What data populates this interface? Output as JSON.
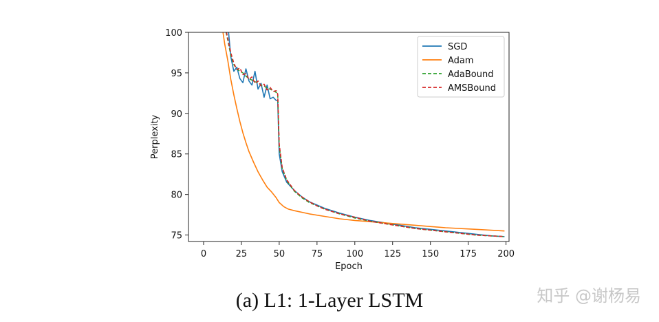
{
  "caption": "(a) L1: 1-Layer LSTM",
  "watermark": "知乎 @谢杨易",
  "chart_data": {
    "type": "line",
    "title": "",
    "xlabel": "Epoch",
    "ylabel": "Perplexity",
    "xlim": [
      -10,
      202
    ],
    "ylim": [
      74.2,
      100
    ],
    "xticks": [
      0,
      25,
      50,
      75,
      100,
      125,
      150,
      175,
      200
    ],
    "yticks": [
      75,
      80,
      85,
      90,
      95,
      100
    ],
    "grid": false,
    "legend_position": "top-right",
    "series": [
      {
        "name": "SGD",
        "color": "#1f77b4",
        "dash": "solid",
        "x": [
          10,
          12,
          14,
          16,
          18,
          20,
          22,
          24,
          26,
          28,
          30,
          32,
          34,
          36,
          38,
          40,
          42,
          44,
          46,
          48,
          49,
          50,
          52,
          55,
          60,
          65,
          70,
          75,
          80,
          90,
          100,
          110,
          120,
          130,
          140,
          150,
          160,
          170,
          180,
          190,
          199
        ],
        "y": [
          104,
          102,
          100.5,
          101,
          97,
          95.2,
          95.7,
          94.3,
          93.8,
          95.5,
          94,
          93.5,
          95.2,
          93,
          93.7,
          92,
          93.5,
          91.8,
          92,
          91.6,
          91.6,
          85,
          82.8,
          81.5,
          80.5,
          79.7,
          79.1,
          78.7,
          78.3,
          77.7,
          77.2,
          76.8,
          76.5,
          76.2,
          75.9,
          75.7,
          75.5,
          75.3,
          75.1,
          74.9,
          74.8
        ]
      },
      {
        "name": "Adam",
        "color": "#ff7f0e",
        "dash": "solid",
        "x": [
          10,
          12,
          14,
          16,
          18,
          20,
          22,
          24,
          26,
          28,
          30,
          33,
          36,
          39,
          42,
          45,
          48,
          50,
          53,
          56,
          60,
          70,
          80,
          90,
          100,
          120,
          140,
          160,
          180,
          199
        ],
        "y": [
          104,
          101,
          98.5,
          96.5,
          94.2,
          92.3,
          90.6,
          89,
          87.6,
          86.4,
          85.3,
          84,
          82.8,
          81.8,
          80.9,
          80.3,
          79.6,
          79,
          78.5,
          78.2,
          78,
          77.6,
          77.3,
          77,
          76.8,
          76.5,
          76.2,
          75.9,
          75.7,
          75.5
        ]
      },
      {
        "name": "AdaBound",
        "color": "#2ca02c",
        "dash": "dashed",
        "x": [
          10,
          12,
          14,
          16,
          18,
          20,
          22,
          24,
          26,
          28,
          30,
          32,
          34,
          36,
          38,
          40,
          42,
          44,
          46,
          48,
          49,
          50,
          52,
          55,
          60,
          65,
          70,
          75,
          80,
          90,
          100,
          110,
          120,
          130,
          140,
          150,
          160,
          170,
          180,
          190,
          199
        ],
        "y": [
          104,
          102,
          100.8,
          99,
          97.2,
          96,
          95.5,
          95.2,
          95,
          94.6,
          94.3,
          94.1,
          93.9,
          93.8,
          93.5,
          93.4,
          93.1,
          93,
          92.8,
          92.6,
          92.5,
          86,
          83.2,
          81.7,
          80.4,
          79.6,
          79,
          78.6,
          78.2,
          77.6,
          77.1,
          76.7,
          76.4,
          76.1,
          75.8,
          75.6,
          75.4,
          75.2,
          75,
          74.9,
          74.8
        ]
      },
      {
        "name": "AMSBound",
        "color": "#d62728",
        "dash": "dashed",
        "x": [
          10,
          12,
          14,
          16,
          18,
          20,
          22,
          24,
          26,
          28,
          30,
          32,
          34,
          36,
          38,
          40,
          42,
          44,
          46,
          48,
          49,
          50,
          52,
          55,
          60,
          65,
          70,
          75,
          80,
          90,
          100,
          110,
          120,
          130,
          140,
          150,
          160,
          170,
          180,
          190,
          199
        ],
        "y": [
          104,
          102.3,
          101,
          99.2,
          97.5,
          96.2,
          95.4,
          95.6,
          94.8,
          94.9,
          94.2,
          94.5,
          93.7,
          94,
          93.4,
          93.6,
          92.9,
          93.2,
          92.7,
          92.8,
          92.4,
          86.2,
          83.3,
          81.8,
          80.5,
          79.7,
          79.1,
          78.6,
          78.2,
          77.6,
          77.2,
          76.7,
          76.4,
          76.1,
          75.8,
          75.6,
          75.4,
          75.2,
          75,
          74.9,
          74.8
        ]
      }
    ]
  }
}
